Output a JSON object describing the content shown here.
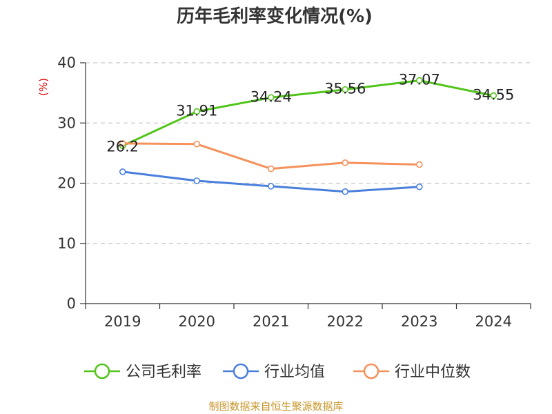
{
  "chart_data": {
    "type": "line",
    "title": "历年毛利率变化情况(%)",
    "ylabel": "(%)",
    "xlabel": "",
    "categories": [
      "2019",
      "2020",
      "2021",
      "2022",
      "2023",
      "2024"
    ],
    "ylim": [
      0,
      40
    ],
    "yticks": [
      0,
      10,
      20,
      30,
      40
    ],
    "grid": true,
    "legend_position": "bottom",
    "series": [
      {
        "name": "公司毛利率",
        "color": "#52c41a",
        "values": [
          26.2,
          31.91,
          34.24,
          35.56,
          37.07,
          34.55
        ],
        "labels": [
          "26.2",
          "31.91",
          "34.24",
          "35.56",
          "37.07",
          "34.55"
        ]
      },
      {
        "name": "行业均值",
        "color": "#4a7fdc",
        "values": [
          21.9,
          20.4,
          19.5,
          18.6,
          19.4,
          null
        ]
      },
      {
        "name": "行业中位数",
        "color": "#f5915a",
        "values": [
          26.6,
          26.5,
          22.4,
          23.4,
          23.1,
          null
        ]
      }
    ],
    "source": "制图数据来自恒生聚源数据库"
  }
}
